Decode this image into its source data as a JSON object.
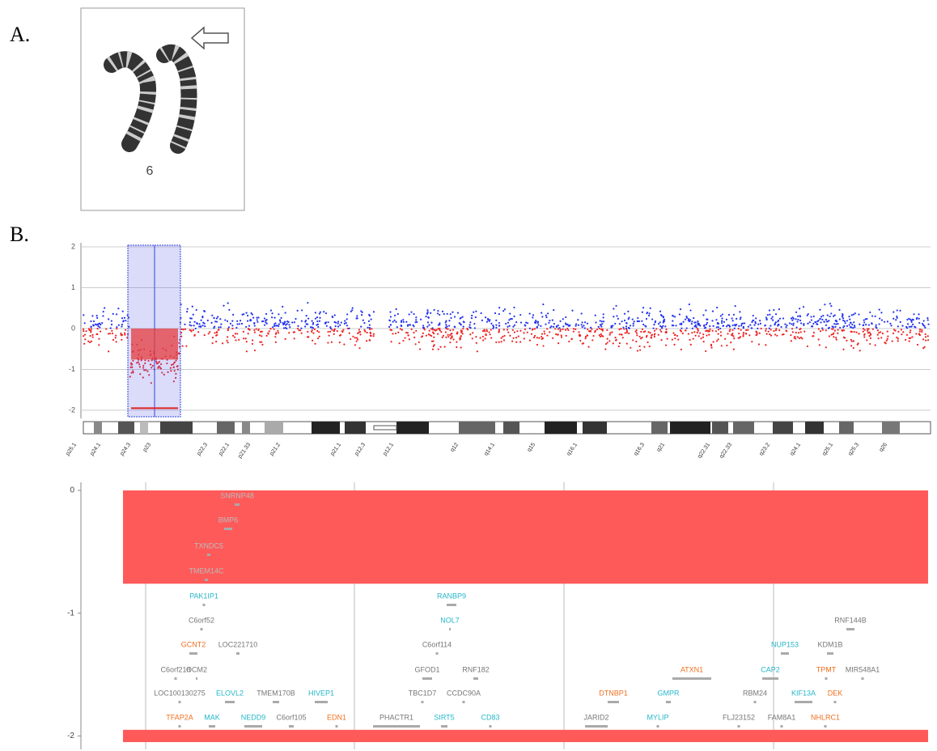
{
  "panel_a": {
    "label": "A.",
    "chromosome_label": "6"
  },
  "panel_b": {
    "label": "B.",
    "plot": {
      "ylim": [
        -2.2,
        2.1
      ],
      "yticks": [
        2,
        1,
        0,
        -1,
        -2
      ],
      "segments": [
        {
          "value": -0.76
        },
        {
          "value": -1.95
        }
      ],
      "bands": [
        "p25.1",
        "p24.1",
        "p24.3",
        "p23",
        "p22.3",
        "p22.1",
        "p21.33",
        "p21.2",
        "p21.1",
        "p12.3",
        "p12.1",
        "q12",
        "q14.1",
        "q15",
        "q16.1",
        "q16.3",
        "q21",
        "q22.31",
        "q22.33",
        "q23.2",
        "q24.1",
        "q25.1",
        "q25.3",
        "q26"
      ]
    },
    "genes": {
      "ylim": [
        0,
        -2.05
      ],
      "yticks": [
        0,
        -1,
        -2
      ],
      "segments": [
        {
          "value": -0.76
        },
        {
          "value": -1.95
        }
      ],
      "items": [
        {
          "name": "SNRNP48",
          "color": "#aaaaaa"
        },
        {
          "name": "BMP6",
          "color": "#aaaaaa"
        },
        {
          "name": "TXNDC5",
          "color": "#aaaaaa"
        },
        {
          "name": "TMEM14C",
          "color": "#aaaaaa"
        },
        {
          "name": "PAK1IP1",
          "color": "#26b7c9"
        },
        {
          "name": "RANBP9",
          "color": "#26b7c9"
        },
        {
          "name": "C6orf52",
          "color": "#777777"
        },
        {
          "name": "NOL7",
          "color": "#26b7c9"
        },
        {
          "name": "RNF144B",
          "color": "#777777"
        },
        {
          "name": "GCNT2",
          "color": "#f07020"
        },
        {
          "name": "LOC221710",
          "color": "#777777"
        },
        {
          "name": "C6orf114",
          "color": "#777777"
        },
        {
          "name": "NUP153",
          "color": "#26b7c9"
        },
        {
          "name": "KDM1B",
          "color": "#777777"
        },
        {
          "name": "C6orf218",
          "color": "#777777"
        },
        {
          "name": "OCM2",
          "color": "#777777"
        },
        {
          "name": "GFOD1",
          "color": "#777777"
        },
        {
          "name": "RNF182",
          "color": "#777777"
        },
        {
          "name": "ATXN1",
          "color": "#f07020"
        },
        {
          "name": "CAP2",
          "color": "#26b7c9"
        },
        {
          "name": "TPMT",
          "color": "#f07020"
        },
        {
          "name": "MIR548A1",
          "color": "#777777"
        },
        {
          "name": "LOC100130275",
          "color": "#777777"
        },
        {
          "name": "ELOVL2",
          "color": "#26b7c9"
        },
        {
          "name": "TMEM170B",
          "color": "#777777"
        },
        {
          "name": "HIVEP1",
          "color": "#26b7c9"
        },
        {
          "name": "TBC1D7",
          "color": "#777777"
        },
        {
          "name": "CCDC90A",
          "color": "#777777"
        },
        {
          "name": "DTNBP1",
          "color": "#f07020"
        },
        {
          "name": "GMPR",
          "color": "#26b7c9"
        },
        {
          "name": "RBM24",
          "color": "#777777"
        },
        {
          "name": "KIF13A",
          "color": "#26b7c9"
        },
        {
          "name": "DEK",
          "color": "#f07020"
        },
        {
          "name": "TFAP2A",
          "color": "#f07020"
        },
        {
          "name": "MAK",
          "color": "#26b7c9"
        },
        {
          "name": "NEDD9",
          "color": "#26b7c9"
        },
        {
          "name": "C6orf105",
          "color": "#777777"
        },
        {
          "name": "EDN1",
          "color": "#f07020"
        },
        {
          "name": "PHACTR1",
          "color": "#777777"
        },
        {
          "name": "SIRT5",
          "color": "#26b7c9"
        },
        {
          "name": "CD83",
          "color": "#26b7c9"
        },
        {
          "name": "JARID2",
          "color": "#777777"
        },
        {
          "name": "MYLIP",
          "color": "#26b7c9"
        },
        {
          "name": "FLJ23152",
          "color": "#777777"
        },
        {
          "name": "FAM8A1",
          "color": "#777777"
        },
        {
          "name": "NHLRC1",
          "color": "#f07020"
        }
      ]
    }
  }
}
